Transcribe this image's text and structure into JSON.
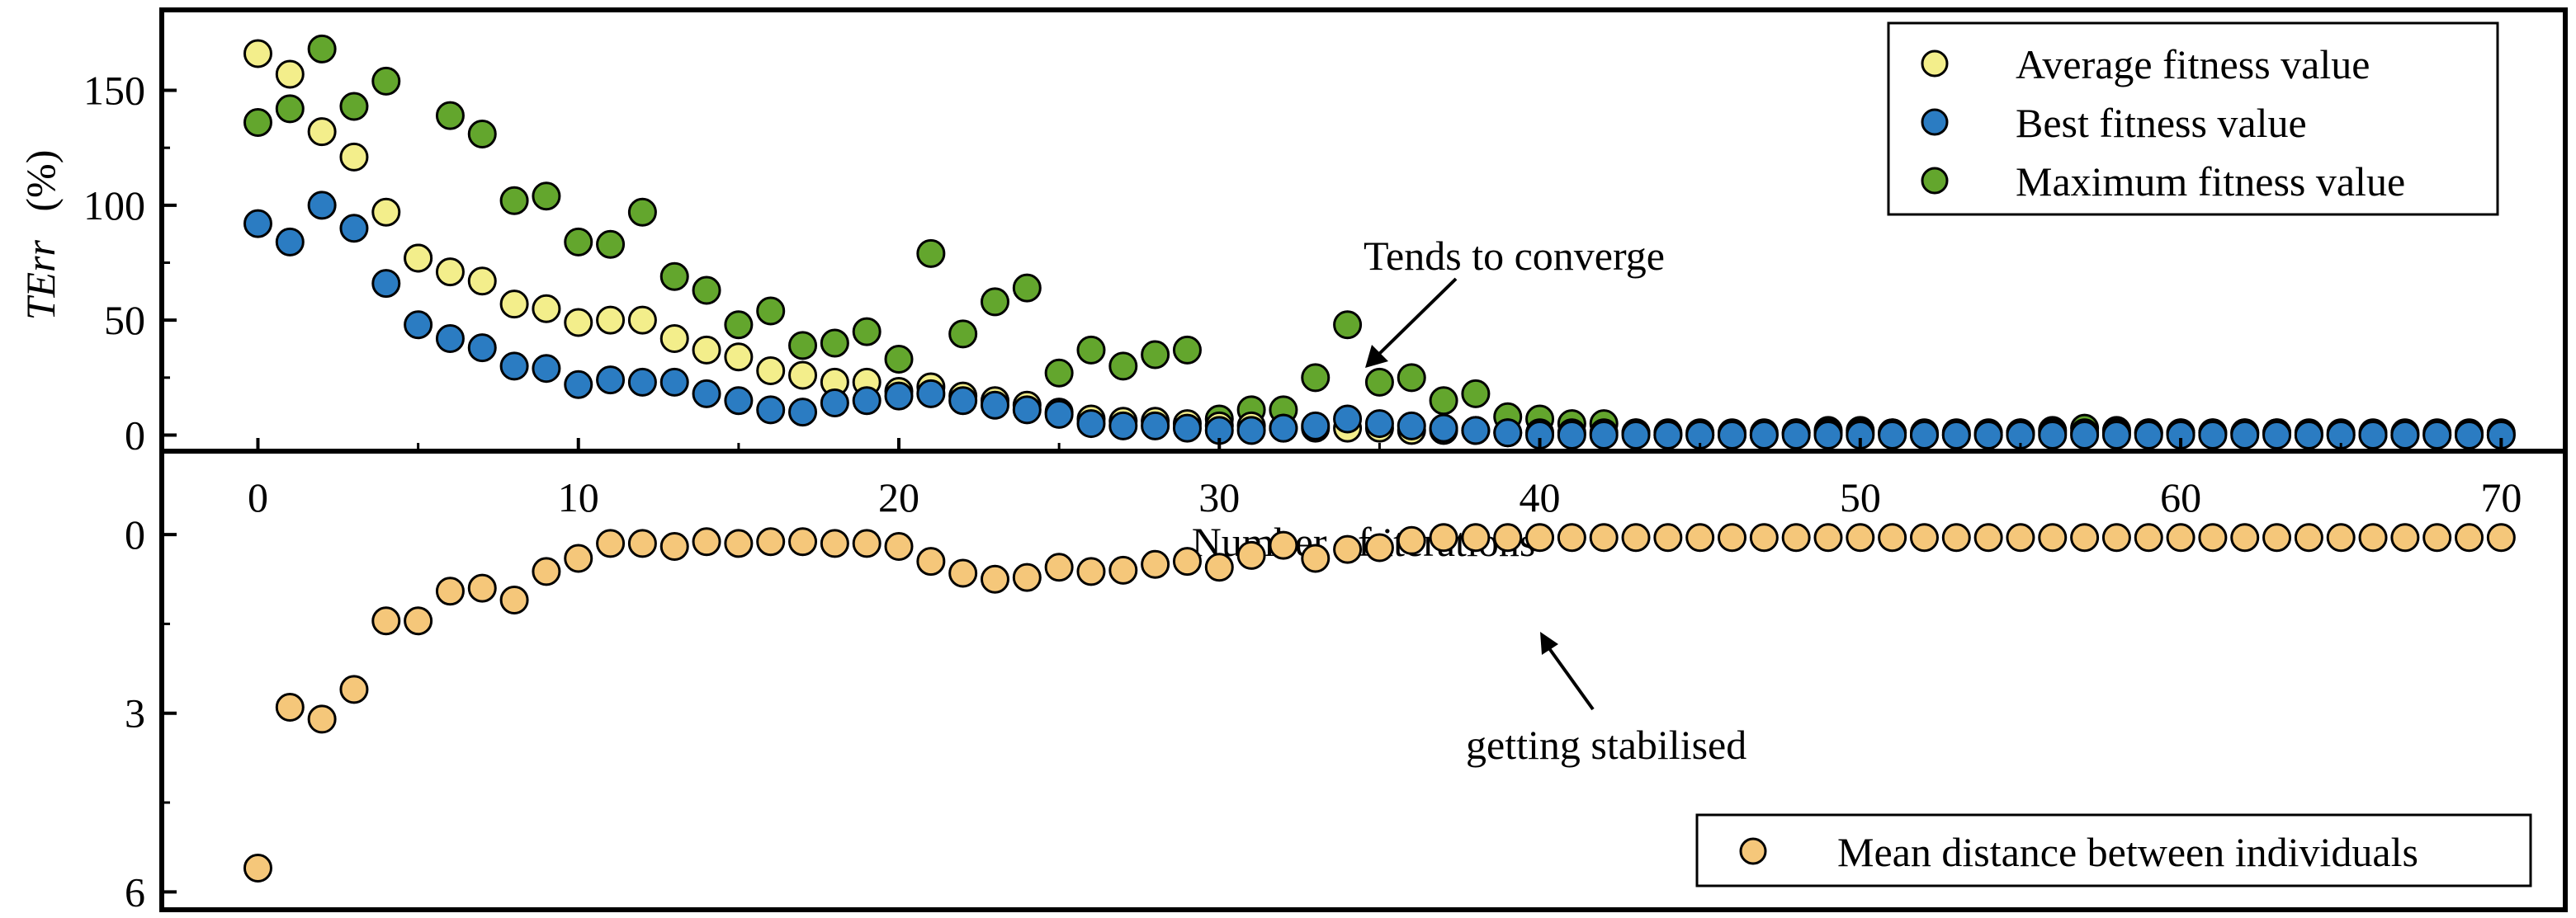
{
  "colors": {
    "average": "#f3ee8b",
    "best": "#2b7cc2",
    "maximum": "#63a62d",
    "mean_distance": "#f5c77a"
  },
  "chart_data": [
    {
      "type": "scatter",
      "title": "",
      "xlabel": "Number of iterations",
      "ylabel_italic": "TErr",
      "ylabel_unit": "(%)",
      "xlim": [
        -3,
        72
      ],
      "ylim": [
        -7,
        185
      ],
      "xticks": [
        0,
        10,
        20,
        30,
        40,
        50,
        60,
        70
      ],
      "xtick_labels": [
        "0",
        "10",
        "20",
        "30",
        "40",
        "50",
        "60",
        "70"
      ],
      "yticks": [
        0,
        50,
        100,
        150
      ],
      "ytick_labels": [
        "0",
        "50",
        "100",
        "150"
      ],
      "legend_position": "top-right",
      "annotation": "Tends to converge",
      "series": [
        {
          "name": "Average fitness value",
          "x": [
            0,
            1,
            2,
            3,
            4,
            5,
            6,
            7,
            8,
            9,
            10,
            11,
            12,
            13,
            14,
            15,
            16,
            17,
            18,
            19,
            20,
            21,
            22,
            23,
            24,
            25,
            26,
            27,
            28,
            29,
            30,
            31,
            32,
            33,
            34,
            35,
            36,
            37,
            38,
            39,
            40,
            41,
            42,
            43,
            44,
            45,
            46,
            47,
            48,
            49,
            50,
            51,
            52,
            53,
            54,
            55,
            56,
            57,
            58,
            59,
            60,
            61,
            62,
            63,
            64,
            65,
            66,
            67,
            68,
            69,
            70
          ],
          "y": [
            166,
            157,
            132,
            121,
            97,
            77,
            71,
            67,
            57,
            55,
            49,
            50,
            50,
            42,
            37,
            34,
            28,
            26,
            23,
            23,
            19,
            21,
            17,
            15,
            13,
            10,
            7,
            6,
            6,
            5,
            4,
            4,
            3,
            3,
            3,
            3,
            2,
            2,
            2,
            1,
            1,
            1,
            1,
            1,
            1,
            1,
            1,
            1,
            1,
            1,
            1,
            1,
            1,
            1,
            1,
            1,
            1,
            1,
            1,
            1,
            1,
            1,
            1,
            1,
            1,
            1,
            1,
            1,
            1,
            1,
            1
          ]
        },
        {
          "name": "Best fitness value",
          "x": [
            0,
            1,
            2,
            3,
            4,
            5,
            6,
            7,
            8,
            9,
            10,
            11,
            12,
            13,
            14,
            15,
            16,
            17,
            18,
            19,
            20,
            21,
            22,
            23,
            24,
            25,
            26,
            27,
            28,
            29,
            30,
            31,
            32,
            33,
            34,
            35,
            36,
            37,
            38,
            39,
            40,
            41,
            42,
            43,
            44,
            45,
            46,
            47,
            48,
            49,
            50,
            51,
            52,
            53,
            54,
            55,
            56,
            57,
            58,
            59,
            60,
            61,
            62,
            63,
            64,
            65,
            66,
            67,
            68,
            69,
            70
          ],
          "y": [
            92,
            84,
            100,
            90,
            66,
            48,
            42,
            38,
            30,
            29,
            22,
            24,
            23,
            23,
            18,
            15,
            11,
            10,
            14,
            15,
            17,
            18,
            15,
            13,
            11,
            9,
            5,
            4,
            4,
            3,
            2,
            2,
            3,
            4,
            7,
            5,
            4,
            3,
            2,
            1,
            0,
            0,
            0,
            0,
            0,
            0,
            0,
            0,
            0,
            0,
            0,
            0,
            0,
            0,
            0,
            0,
            0,
            0,
            0,
            0,
            0,
            0,
            0,
            0,
            0,
            0,
            0,
            0,
            0,
            0,
            0
          ]
        },
        {
          "name": "Maximum fitness value",
          "x": [
            0,
            1,
            2,
            3,
            4,
            5,
            6,
            7,
            8,
            9,
            10,
            11,
            12,
            13,
            14,
            15,
            16,
            17,
            18,
            19,
            20,
            21,
            22,
            23,
            24,
            25,
            26,
            27,
            28,
            29,
            30,
            31,
            32,
            33,
            34,
            35,
            36,
            37,
            38,
            39,
            40,
            41,
            42,
            43,
            44,
            45,
            46,
            47,
            48,
            49,
            50,
            51,
            52,
            53,
            54,
            55,
            56,
            57,
            58,
            59,
            60,
            61,
            62,
            63,
            64,
            65,
            66,
            67,
            68,
            69,
            70
          ],
          "y": [
            136,
            142,
            168,
            143,
            154,
            77,
            139,
            131,
            102,
            104,
            84,
            83,
            97,
            69,
            63,
            48,
            54,
            39,
            40,
            45,
            33,
            79,
            44,
            58,
            64,
            27,
            37,
            30,
            35,
            37,
            7,
            11,
            11,
            25,
            48,
            23,
            25,
            15,
            18,
            8,
            7,
            5,
            5,
            1,
            0,
            0,
            0,
            0,
            1,
            2,
            2,
            1,
            0,
            0,
            0,
            1,
            2,
            3,
            2,
            1,
            1,
            1,
            1,
            1,
            0,
            0,
            0,
            0,
            0,
            0,
            0
          ]
        }
      ]
    },
    {
      "type": "scatter",
      "title": "",
      "xlabel": "",
      "ylabel": "",
      "xlim": [
        -3,
        72
      ],
      "ylim": [
        6.3,
        -1.4
      ],
      "yticks": [
        0,
        3,
        6
      ],
      "ytick_labels": [
        "0",
        "3",
        "6"
      ],
      "legend_position": "bottom-right",
      "annotation": "getting stabilised",
      "series": [
        {
          "name": "Mean distance between individuals",
          "x": [
            0,
            1,
            2,
            3,
            4,
            5,
            6,
            7,
            8,
            9,
            10,
            11,
            12,
            13,
            14,
            15,
            16,
            17,
            18,
            19,
            20,
            21,
            22,
            23,
            24,
            25,
            26,
            27,
            28,
            29,
            30,
            31,
            32,
            33,
            34,
            35,
            36,
            37,
            38,
            39,
            40,
            41,
            42,
            43,
            44,
            45,
            46,
            47,
            48,
            49,
            50,
            51,
            52,
            53,
            54,
            55,
            56,
            57,
            58,
            59,
            60,
            61,
            62,
            63,
            64,
            65,
            66,
            67,
            68,
            69,
            70
          ],
          "y": [
            5.6,
            2.9,
            3.1,
            2.6,
            1.45,
            1.45,
            0.95,
            0.9,
            1.1,
            0.62,
            0.4,
            0.15,
            0.15,
            0.2,
            0.12,
            0.15,
            0.12,
            0.12,
            0.15,
            0.15,
            0.2,
            0.45,
            0.65,
            0.75,
            0.72,
            0.55,
            0.62,
            0.6,
            0.5,
            0.45,
            0.55,
            0.35,
            0.18,
            0.4,
            0.25,
            0.22,
            0.1,
            0.05,
            0.05,
            0.05,
            0.05,
            0.05,
            0.05,
            0.05,
            0.05,
            0.05,
            0.05,
            0.05,
            0.05,
            0.05,
            0.05,
            0.05,
            0.05,
            0.05,
            0.05,
            0.05,
            0.05,
            0.05,
            0.05,
            0.05,
            0.05,
            0.05,
            0.05,
            0.05,
            0.05,
            0.05,
            0.05,
            0.05,
            0.05,
            0.05,
            0.05
          ]
        }
      ]
    }
  ]
}
